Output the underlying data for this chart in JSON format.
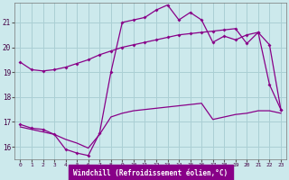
{
  "background_color": "#cce9ec",
  "grid_color": "#aacfd4",
  "line_color": "#880088",
  "xlabel": "Windchill (Refroidissement éolien,°C)",
  "xlim": [
    -0.5,
    23.5
  ],
  "ylim": [
    15.5,
    21.8
  ],
  "yticks": [
    16,
    17,
    18,
    19,
    20,
    21
  ],
  "xticks": [
    0,
    1,
    2,
    3,
    4,
    5,
    6,
    7,
    8,
    9,
    10,
    11,
    12,
    13,
    14,
    15,
    16,
    17,
    18,
    19,
    20,
    21,
    22,
    23
  ],
  "line1_x": [
    0,
    1,
    2,
    3,
    4,
    5,
    6,
    7,
    8,
    9,
    10,
    11,
    12,
    13,
    14,
    15,
    16,
    17,
    18,
    19,
    20,
    21,
    22,
    23
  ],
  "line1_y": [
    19.4,
    19.1,
    19.05,
    19.1,
    19.2,
    19.35,
    19.5,
    19.7,
    19.85,
    20.0,
    20.1,
    20.2,
    20.3,
    20.4,
    20.5,
    20.55,
    20.6,
    20.65,
    20.7,
    20.75,
    20.15,
    20.6,
    20.1,
    17.5
  ],
  "line2_x": [
    0,
    1,
    2,
    3,
    4,
    5,
    6,
    7,
    8,
    9,
    10,
    11,
    12,
    13,
    14,
    15,
    16,
    17,
    18,
    19,
    20,
    21,
    22,
    23
  ],
  "line2_y": [
    16.9,
    16.75,
    16.7,
    16.5,
    15.9,
    15.75,
    15.65,
    16.55,
    19.0,
    21.0,
    21.1,
    21.2,
    21.5,
    21.7,
    21.1,
    21.4,
    21.1,
    20.2,
    20.45,
    20.3,
    20.5,
    20.6,
    18.5,
    17.5
  ],
  "line3_x": [
    0,
    1,
    2,
    3,
    4,
    5,
    6,
    7,
    8,
    9,
    10,
    11,
    12,
    13,
    14,
    15,
    16,
    17,
    18,
    19,
    20,
    21,
    22,
    23
  ],
  "line3_y": [
    16.8,
    16.7,
    16.6,
    16.5,
    16.3,
    16.15,
    15.95,
    16.5,
    17.2,
    17.35,
    17.45,
    17.5,
    17.55,
    17.6,
    17.65,
    17.7,
    17.75,
    17.1,
    17.2,
    17.3,
    17.35,
    17.45,
    17.45,
    17.35
  ]
}
